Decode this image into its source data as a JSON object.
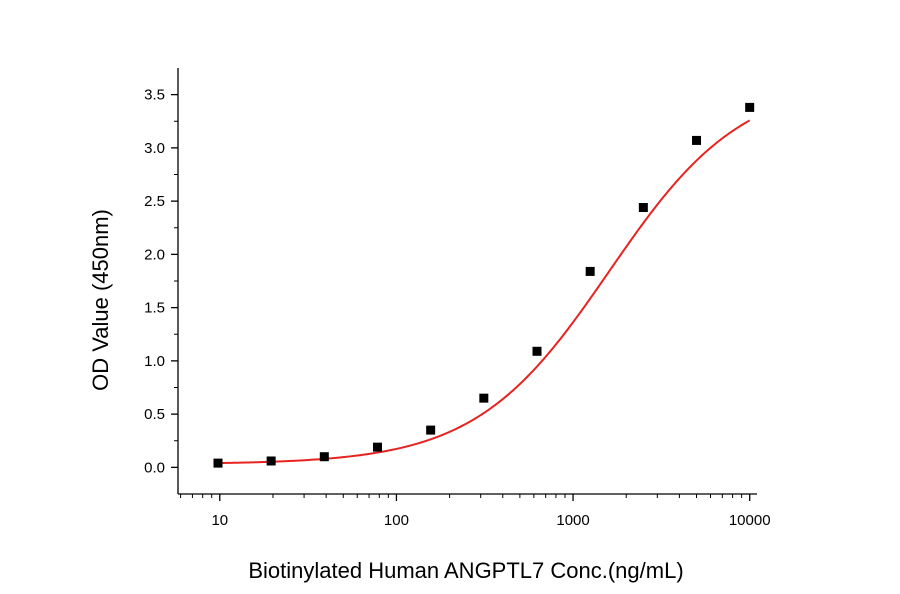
{
  "chart_data": {
    "type": "scatter",
    "title": "",
    "xlabel": "Biotinylated Human ANGPTL7 Conc.(ng/mL)",
    "ylabel": "OD Value (450nm)",
    "x_scale": "log",
    "xlim": [
      5.8,
      11000
    ],
    "ylim": [
      -0.25,
      3.75
    ],
    "x_ticks": [
      10,
      100,
      1000,
      10000
    ],
    "x_tick_labels": [
      "10",
      "100",
      "1000",
      "10000"
    ],
    "y_ticks": [
      0.0,
      0.5,
      1.0,
      1.5,
      2.0,
      2.5,
      3.0,
      3.5
    ],
    "y_tick_labels": [
      "0.0",
      "0.5",
      "1.0",
      "1.5",
      "2.0",
      "2.5",
      "3.0",
      "3.5"
    ],
    "grid": false,
    "legend": "none",
    "colors": {
      "fit_line": "#e8231f",
      "marker": "#000000",
      "axis": "#000000"
    },
    "series": [
      {
        "style": "markers",
        "marker": "square",
        "x": [
          9.77,
          19.53,
          39.06,
          78.13,
          156.25,
          312.5,
          625,
          1250,
          2500,
          5000,
          10000
        ],
        "y": [
          0.04,
          0.06,
          0.1,
          0.19,
          0.35,
          0.65,
          1.09,
          1.84,
          2.44,
          3.07,
          3.38
        ]
      },
      {
        "style": "line",
        "fit": "4PL",
        "params": {
          "bottom": 0.03,
          "top": 3.65,
          "ec50": 1600,
          "hill": 1.15
        }
      }
    ]
  }
}
